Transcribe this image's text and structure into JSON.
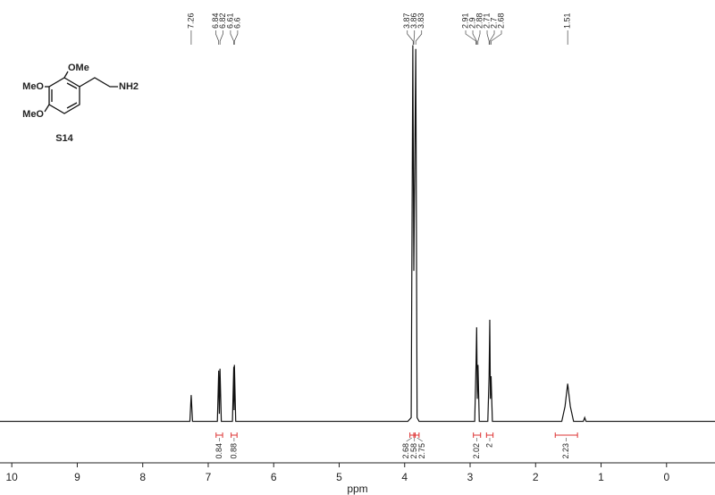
{
  "chart_data": {
    "type": "line",
    "x_label": "ppm",
    "xlim": [
      10.18,
      -0.74
    ],
    "xticks": [
      10,
      9,
      8,
      7,
      6,
      5,
      4,
      3,
      2,
      1,
      0
    ],
    "ylim": [
      -2,
      112
    ],
    "series": [
      {
        "color": "#111111",
        "x": [
          10.18,
          7.28,
          7.26,
          7.24,
          6.86,
          6.84,
          6.83,
          6.82,
          6.8,
          6.63,
          6.61,
          6.605,
          6.6,
          6.58,
          3.95,
          3.9,
          3.875,
          3.86,
          3.83,
          3.81,
          3.78,
          2.93,
          2.91,
          2.9,
          2.89,
          2.88,
          2.86,
          2.73,
          2.71,
          2.7,
          2.69,
          2.68,
          2.66,
          1.6,
          1.55,
          1.51,
          1.47,
          1.42,
          1.27,
          1.25,
          1.23,
          -0.74
        ],
        "values": [
          0,
          0,
          7,
          0,
          0,
          13.5,
          2,
          14,
          0,
          0,
          14.5,
          3,
          15,
          0,
          0,
          1,
          100,
          40,
          99,
          1,
          0,
          0,
          15,
          25,
          6,
          15,
          0,
          0,
          12,
          27,
          6,
          12,
          0,
          0,
          4,
          10,
          4,
          0,
          0,
          1,
          0,
          0
        ]
      }
    ],
    "peak_labels": [
      7.26,
      6.84,
      6.82,
      6.61,
      6.6,
      3.87,
      3.86,
      3.83,
      2.91,
      2.9,
      2.88,
      2.71,
      2.7,
      2.68,
      1.51
    ],
    "integrals": [
      {
        "range": [
          6.88,
          6.78
        ],
        "value": 0.84
      },
      {
        "range": [
          6.65,
          6.56
        ],
        "value": 0.88
      },
      {
        "range": [
          3.92,
          3.86
        ],
        "value": 2.68
      },
      {
        "range": [
          3.86,
          3.84
        ],
        "value": 2.58
      },
      {
        "range": [
          3.84,
          3.78
        ],
        "value": 2.75
      },
      {
        "range": [
          2.95,
          2.84
        ],
        "value": 2.02
      },
      {
        "range": [
          2.75,
          2.65
        ],
        "value": 2.0
      },
      {
        "range": [
          1.7,
          1.36
        ],
        "value": 2.23
      }
    ],
    "structure": {
      "labels": [
        "OMe",
        "MeO",
        "MeO",
        "NH2"
      ],
      "compound_id": "S14"
    }
  }
}
